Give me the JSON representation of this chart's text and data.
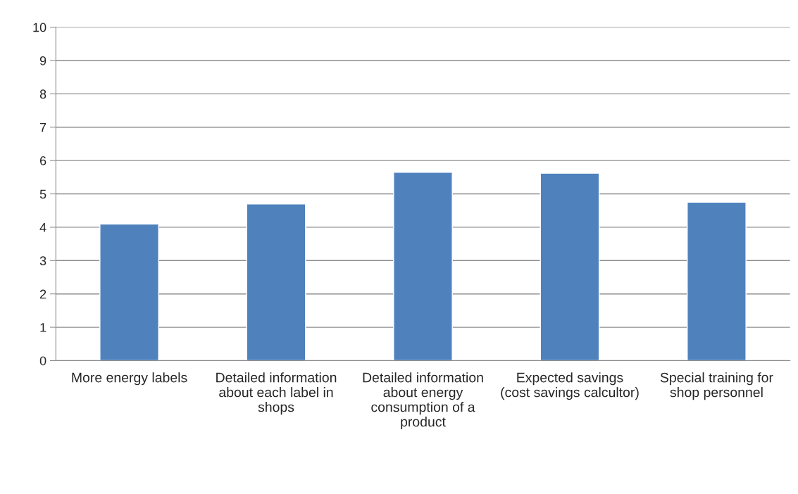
{
  "chart_data": {
    "type": "bar",
    "categories": [
      "More energy labels",
      "Detailed information about each label in shops",
      "Detailed information about energy consumption of a product",
      "Expected savings (cost savings calcultor)",
      "Special training for shop personnel"
    ],
    "values": [
      4.1,
      4.7,
      5.65,
      5.62,
      4.75
    ],
    "color": "#4f81bd",
    "ylim": [
      0,
      10
    ],
    "yticks": [
      0,
      1,
      2,
      3,
      4,
      5,
      6,
      7,
      8,
      9,
      10
    ],
    "grid": "y",
    "legend": false
  }
}
